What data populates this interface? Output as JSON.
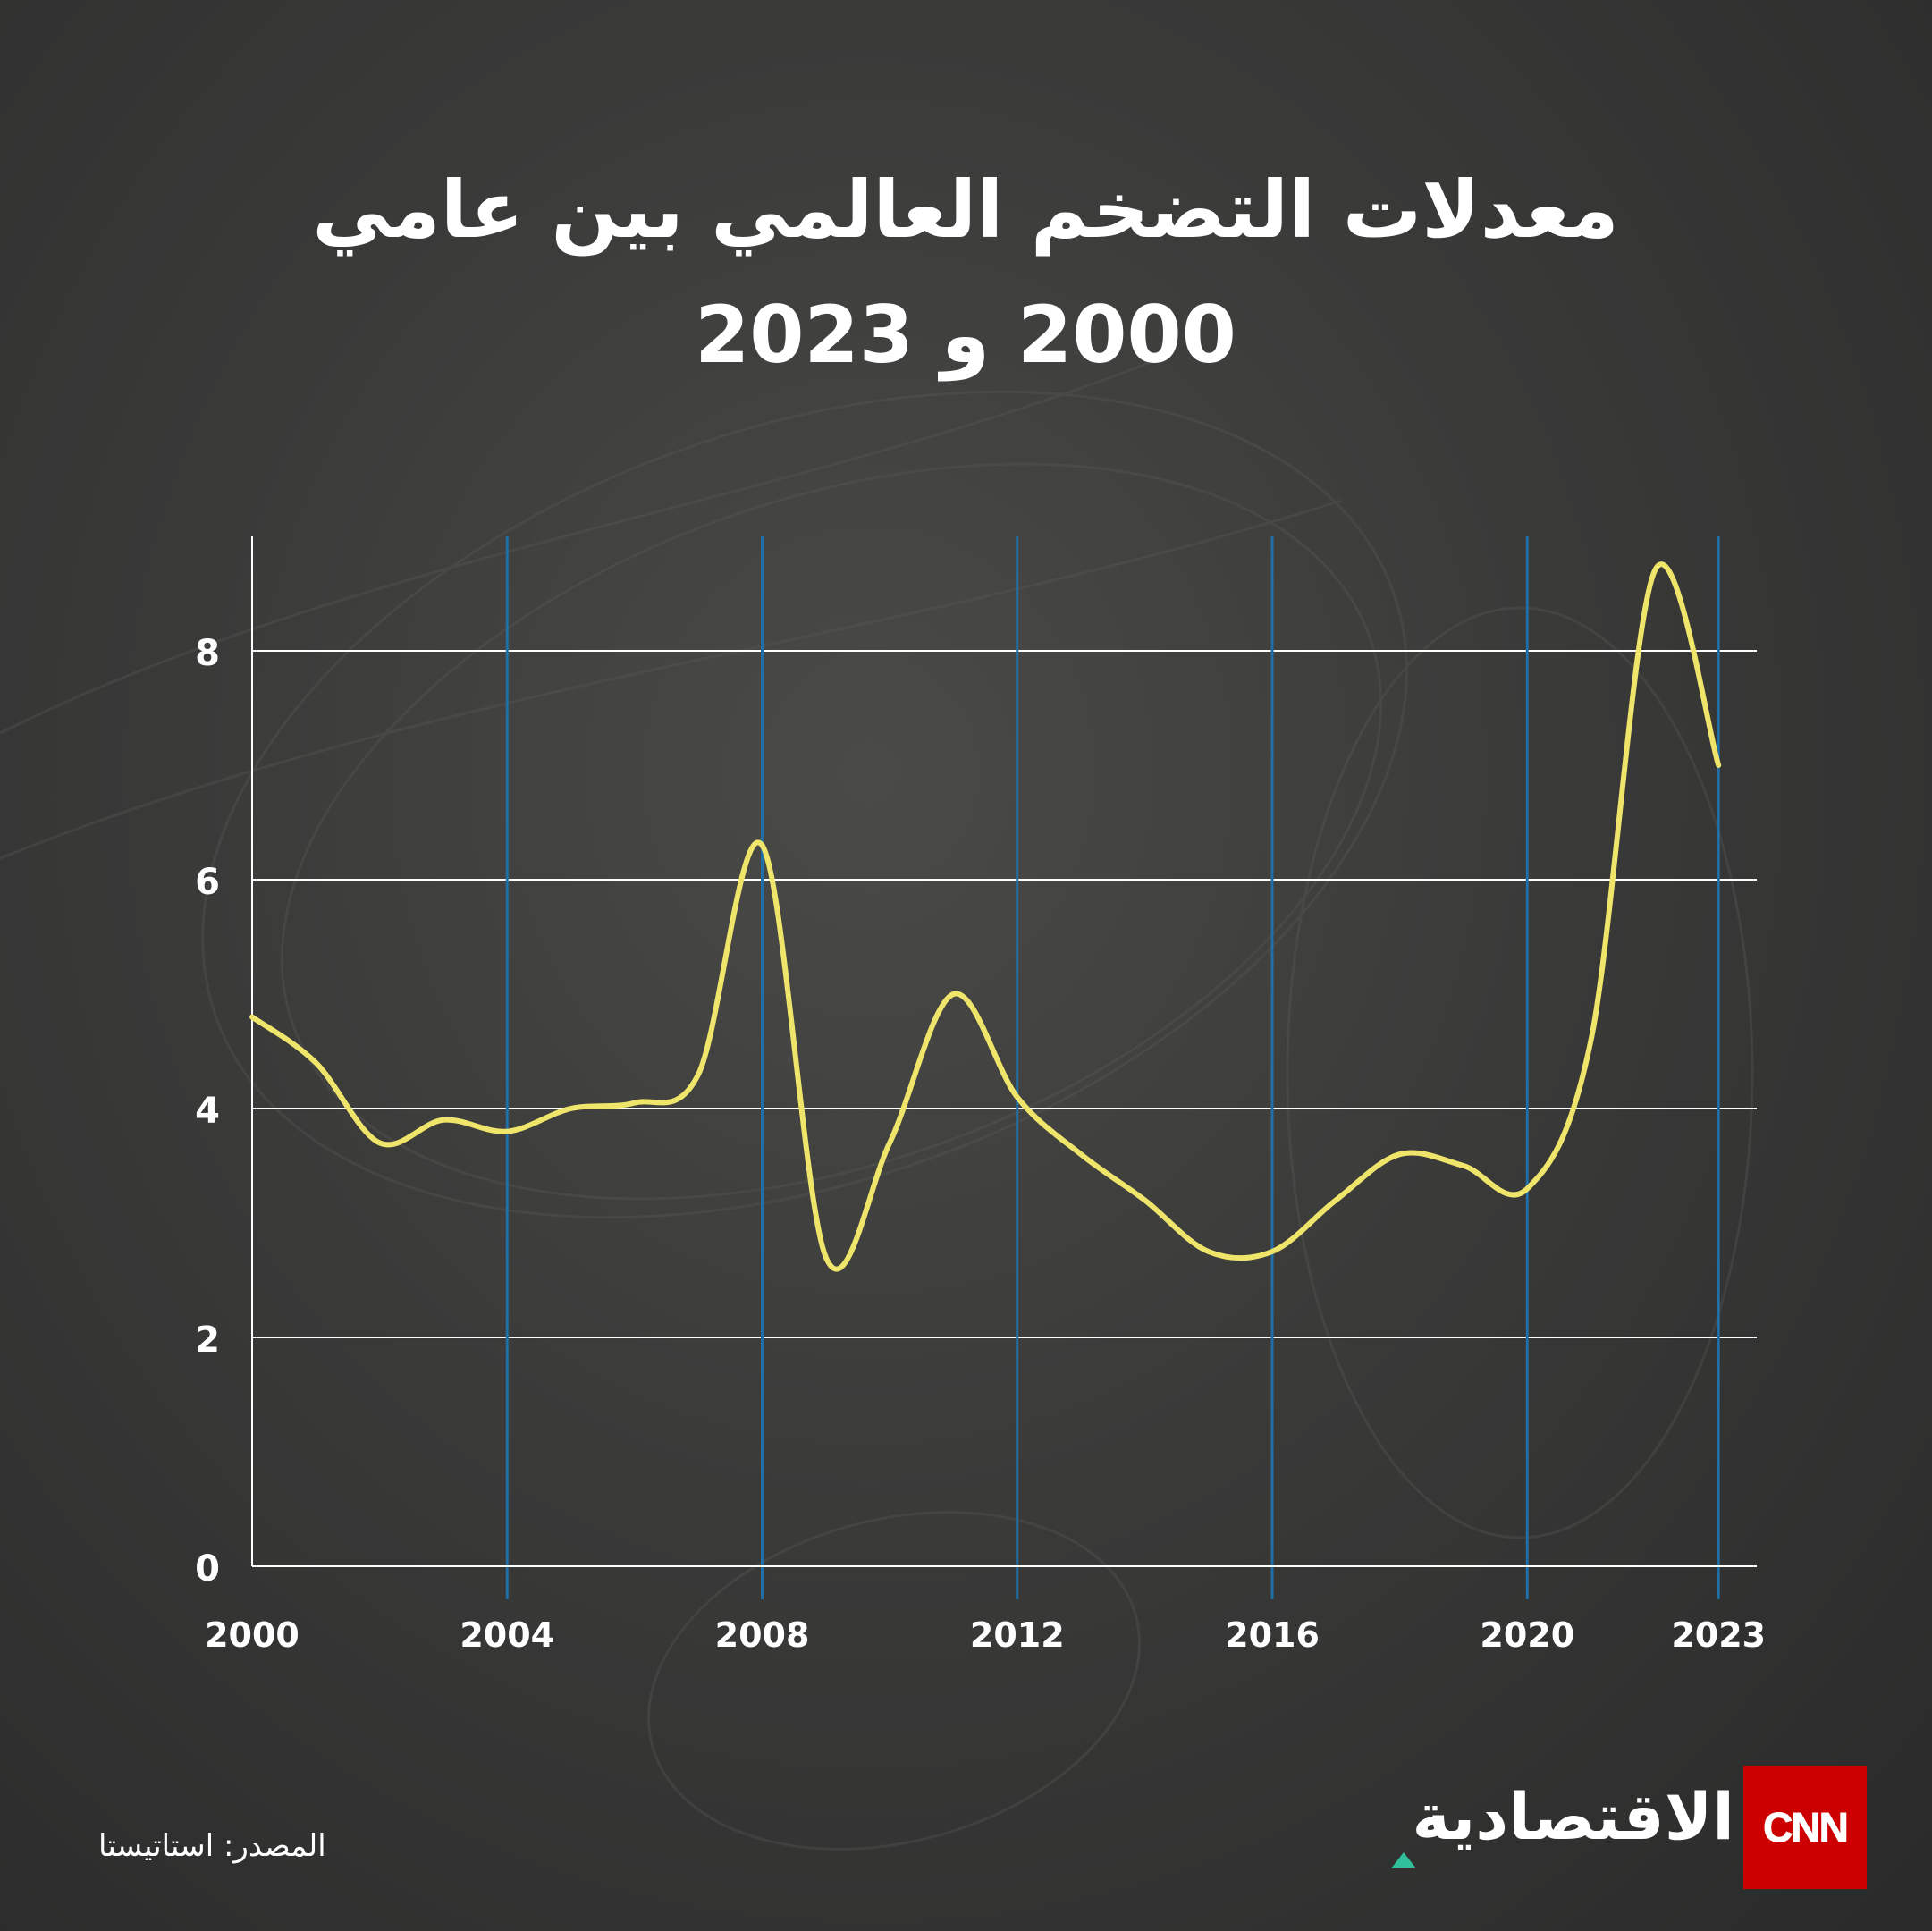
{
  "header": {
    "title_line1": "معدلات التضخم العالمي بين عامي",
    "title_line2": "2000 و 2023"
  },
  "footer": {
    "source": "المصدر: استاتيستا",
    "brand_arabic": "الاقتصادية",
    "brand_cnn": "CNN"
  },
  "colors": {
    "line": "#efe56a",
    "vertical_grid": "#1f6fa8",
    "horizontal_grid": "#ffffff",
    "logo_red": "#cc0000",
    "logo_triangle": "#2fbf9a"
  },
  "chart_data": {
    "type": "line",
    "title": "معدلات التضخم العالمي بين عامي 2000 و 2023",
    "xlabel": "",
    "ylabel": "",
    "xlim": [
      2000,
      2023.6
    ],
    "ylim": [
      0,
      9
    ],
    "x_ticks": [
      2000,
      2004,
      2008,
      2012,
      2016,
      2020,
      2023
    ],
    "y_ticks": [
      0,
      2,
      4,
      6,
      8
    ],
    "grid": "horizontal white lines at y ticks; vertical blue lines at x ticks",
    "series": [
      {
        "x": [
          2000,
          2001,
          2002,
          2003,
          2004,
          2005,
          2006,
          2007,
          2008,
          2009,
          2010,
          2011,
          2012,
          2013,
          2014,
          2015,
          2016,
          2017,
          2018,
          2019,
          2020,
          2021,
          2022,
          2023
        ],
        "values": [
          4.8,
          4.4,
          3.7,
          3.9,
          3.8,
          4.0,
          4.05,
          4.3,
          6.3,
          2.7,
          3.7,
          5.0,
          4.1,
          3.6,
          3.2,
          2.75,
          2.75,
          3.2,
          3.6,
          3.5,
          3.3,
          4.6,
          8.7,
          7.0
        ]
      }
    ]
  }
}
